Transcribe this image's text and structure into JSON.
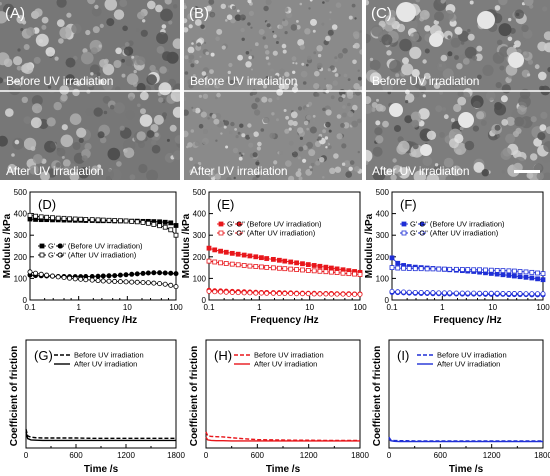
{
  "sem": {
    "before_caption": "Before UV irradiation",
    "after_caption": "After UV irradiation",
    "panels": [
      {
        "letter": "(A)"
      },
      {
        "letter": "(B)"
      },
      {
        "letter": "(C)"
      }
    ]
  },
  "modulus": {
    "ylabel": "Modulus /kPa",
    "xlabel": "Frequency /Hz",
    "xticks": [
      "0.1",
      "1",
      "10",
      "100"
    ],
    "yticks": [
      "0",
      "100",
      "200",
      "300",
      "400",
      "500"
    ],
    "colors": {
      "D": "#000000",
      "E": "#e8161b",
      "F": "#1f2fd6"
    },
    "legend_before": "G'    G\" (Before UV irradiation)",
    "legend_after": "G'    G\" (After UV irradiation)",
    "panels": [
      {
        "letter": "(D)",
        "chart_data": {
          "type": "line",
          "x": [
            0.1,
            0.13,
            0.17,
            0.22,
            0.29,
            0.38,
            0.5,
            0.65,
            0.85,
            1.1,
            1.4,
            1.9,
            2.5,
            3.2,
            4.2,
            5.5,
            7.2,
            9.4,
            12.3,
            16,
            21,
            27,
            35,
            46,
            60,
            78,
            100
          ],
          "series": [
            {
              "name": "G' (Before UV irradiation)",
              "values": [
                375,
                373,
                372,
                372,
                371,
                371,
                370,
                370,
                369,
                369,
                368,
                368,
                367,
                367,
                367,
                366,
                366,
                366,
                365,
                365,
                364,
                364,
                363,
                362,
                360,
                357,
                345
              ]
            },
            {
              "name": "G\" (Before UV irradiation)",
              "values": [
                115,
                113,
                112,
                111,
                110,
                109,
                109,
                108,
                108,
                108,
                109,
                109,
                110,
                111,
                112,
                113,
                115,
                117,
                119,
                121,
                123,
                125,
                126,
                126,
                125,
                124,
                122
              ]
            },
            {
              "name": "G' (After UV irradiation)",
              "values": [
                392,
                388,
                385,
                383,
                381,
                379,
                378,
                376,
                375,
                374,
                373,
                372,
                371,
                370,
                369,
                368,
                367,
                366,
                364,
                362,
                359,
                355,
                350,
                344,
                337,
                325,
                300
              ]
            },
            {
              "name": "G\" (After UV irradiation)",
              "values": [
                130,
                124,
                119,
                115,
                111,
                107,
                104,
                101,
                98,
                96,
                94,
                92,
                90,
                88,
                87,
                86,
                85,
                84,
                83,
                82,
                81,
                80,
                78,
                76,
                73,
                68,
                62
              ]
            }
          ],
          "xlim": [
            0.1,
            100
          ],
          "ylim": [
            0,
            500
          ],
          "xscale": "log"
        }
      },
      {
        "letter": "(E)",
        "chart_data": {
          "type": "line",
          "x": [
            0.1,
            0.13,
            0.17,
            0.22,
            0.29,
            0.38,
            0.5,
            0.65,
            0.85,
            1.1,
            1.4,
            1.9,
            2.5,
            3.2,
            4.2,
            5.5,
            7.2,
            9.4,
            12.3,
            16,
            21,
            27,
            35,
            46,
            60,
            78,
            100
          ],
          "series": [
            {
              "name": "G' (Before UV irradiation)",
              "values": [
                240,
                232,
                226,
                221,
                216,
                212,
                208,
                204,
                200,
                196,
                192,
                188,
                184,
                180,
                176,
                172,
                168,
                164,
                160,
                156,
                152,
                148,
                144,
                140,
                136,
                132,
                128
              ]
            },
            {
              "name": "G\" (Before UV irradiation)",
              "values": [
                45,
                43,
                42,
                41,
                40,
                39,
                38,
                37,
                36,
                35,
                35,
                34,
                34,
                33,
                33,
                32,
                32,
                31,
                31,
                30,
                30,
                30,
                29,
                29,
                29,
                28,
                28
              ]
            },
            {
              "name": "G' (After UV irradiation)",
              "values": [
                180,
                176,
                172,
                169,
                166,
                163,
                160,
                157,
                155,
                153,
                151,
                149,
                147,
                145,
                143,
                141,
                139,
                137,
                135,
                133,
                131,
                129,
                127,
                124,
                122,
                120,
                118
              ]
            },
            {
              "name": "G\" (After UV irradiation)",
              "values": [
                40,
                38,
                37,
                36,
                35,
                34,
                33,
                33,
                32,
                32,
                31,
                31,
                30,
                30,
                30,
                29,
                29,
                29,
                28,
                28,
                28,
                27,
                27,
                27,
                26,
                26,
                26
              ]
            }
          ],
          "xlim": [
            0.1,
            100
          ],
          "ylim": [
            0,
            500
          ],
          "xscale": "log"
        }
      },
      {
        "letter": "(F)",
        "chart_data": {
          "type": "line",
          "x": [
            0.1,
            0.13,
            0.17,
            0.22,
            0.29,
            0.38,
            0.5,
            0.65,
            0.85,
            1.1,
            1.4,
            1.9,
            2.5,
            3.2,
            4.2,
            5.5,
            7.2,
            9.4,
            12.3,
            16,
            21,
            27,
            35,
            46,
            60,
            78,
            100
          ],
          "series": [
            {
              "name": "G' (Before UV irradiation)",
              "values": [
                195,
                170,
                160,
                155,
                152,
                150,
                148,
                146,
                144,
                142,
                140,
                138,
                136,
                134,
                132,
                129,
                126,
                123,
                120,
                117,
                114,
                111,
                108,
                105,
                102,
                98,
                94
              ]
            },
            {
              "name": "G\" (Before UV irradiation)",
              "values": [
                35,
                34,
                33,
                32,
                31,
                30,
                30,
                29,
                29,
                28,
                28,
                28,
                27,
                27,
                27,
                27,
                26,
                26,
                26,
                26,
                25,
                25,
                25,
                25,
                24,
                24,
                24
              ]
            },
            {
              "name": "G' (After UV irradiation)",
              "values": [
                150,
                148,
                147,
                146,
                145,
                145,
                144,
                144,
                143,
                143,
                142,
                142,
                141,
                141,
                140,
                140,
                139,
                138,
                137,
                136,
                135,
                134,
                132,
                130,
                128,
                125,
                122
              ]
            },
            {
              "name": "G\" (After UV irradiation)",
              "values": [
                40,
                38,
                37,
                36,
                35,
                35,
                34,
                34,
                33,
                33,
                33,
                32,
                32,
                32,
                32,
                31,
                31,
                31,
                31,
                30,
                30,
                30,
                30,
                29,
                29,
                29,
                29
              ]
            }
          ],
          "xlim": [
            0.1,
            100
          ],
          "ylim": [
            0,
            500
          ],
          "xscale": "log"
        }
      }
    ]
  },
  "friction": {
    "ylabel": "Coefficient of friction",
    "xlabel": "Time /s",
    "xticks": [
      "0",
      "600",
      "1200",
      "1800"
    ],
    "legend_before": "Before UV irradiation",
    "legend_after": "After UV irradiation",
    "panels": [
      {
        "letter": "(G)",
        "chart_data": {
          "type": "line",
          "x": [
            0,
            20,
            60,
            120,
            200,
            300,
            450,
            600,
            800,
            1000,
            1200,
            1400,
            1600,
            1800
          ],
          "series": [
            {
              "name": "Before UV irradiation",
              "values": [
                0.07,
                0.045,
                0.04,
                0.038,
                0.037,
                0.037,
                0.037,
                0.037,
                0.036,
                0.036,
                0.036,
                0.036,
                0.036,
                0.036
              ]
            },
            {
              "name": "After UV irradiation",
              "values": [
                0.06,
                0.035,
                0.03,
                0.029,
                0.028,
                0.028,
                0.028,
                0.028,
                0.028,
                0.028,
                0.028,
                0.028,
                0.028,
                0.028
              ]
            }
          ],
          "xlim": [
            0,
            1800
          ]
        }
      },
      {
        "letter": "(H)",
        "chart_data": {
          "type": "line",
          "x": [
            0,
            20,
            60,
            120,
            200,
            300,
            450,
            600,
            800,
            1000,
            1200,
            1400,
            1600,
            1800
          ],
          "series": [
            {
              "name": "Before UV irradiation",
              "values": [
                0.06,
                0.045,
                0.043,
                0.042,
                0.041,
                0.038,
                0.034,
                0.031,
                0.03,
                0.029,
                0.029,
                0.028,
                0.028,
                0.028
              ]
            },
            {
              "name": "After UV irradiation",
              "values": [
                0.04,
                0.03,
                0.028,
                0.027,
                0.027,
                0.026,
                0.026,
                0.026,
                0.026,
                0.026,
                0.026,
                0.026,
                0.026,
                0.026
              ]
            }
          ],
          "xlim": [
            0,
            1800
          ]
        }
      },
      {
        "letter": "(I)",
        "chart_data": {
          "type": "line",
          "x": [
            0,
            20,
            60,
            120,
            200,
            300,
            450,
            600,
            800,
            1000,
            1200,
            1400,
            1600,
            1800
          ],
          "series": [
            {
              "name": "Before UV irradiation",
              "values": [
                0.04,
                0.03,
                0.028,
                0.027,
                0.027,
                0.026,
                0.026,
                0.026,
                0.026,
                0.026,
                0.026,
                0.026,
                0.026,
                0.026
              ]
            },
            {
              "name": "After UV irradiation",
              "values": [
                0.035,
                0.027,
                0.025,
                0.024,
                0.024,
                0.024,
                0.024,
                0.024,
                0.024,
                0.024,
                0.024,
                0.024,
                0.024,
                0.024
              ]
            }
          ],
          "xlim": [
            0,
            1800
          ]
        }
      }
    ]
  }
}
